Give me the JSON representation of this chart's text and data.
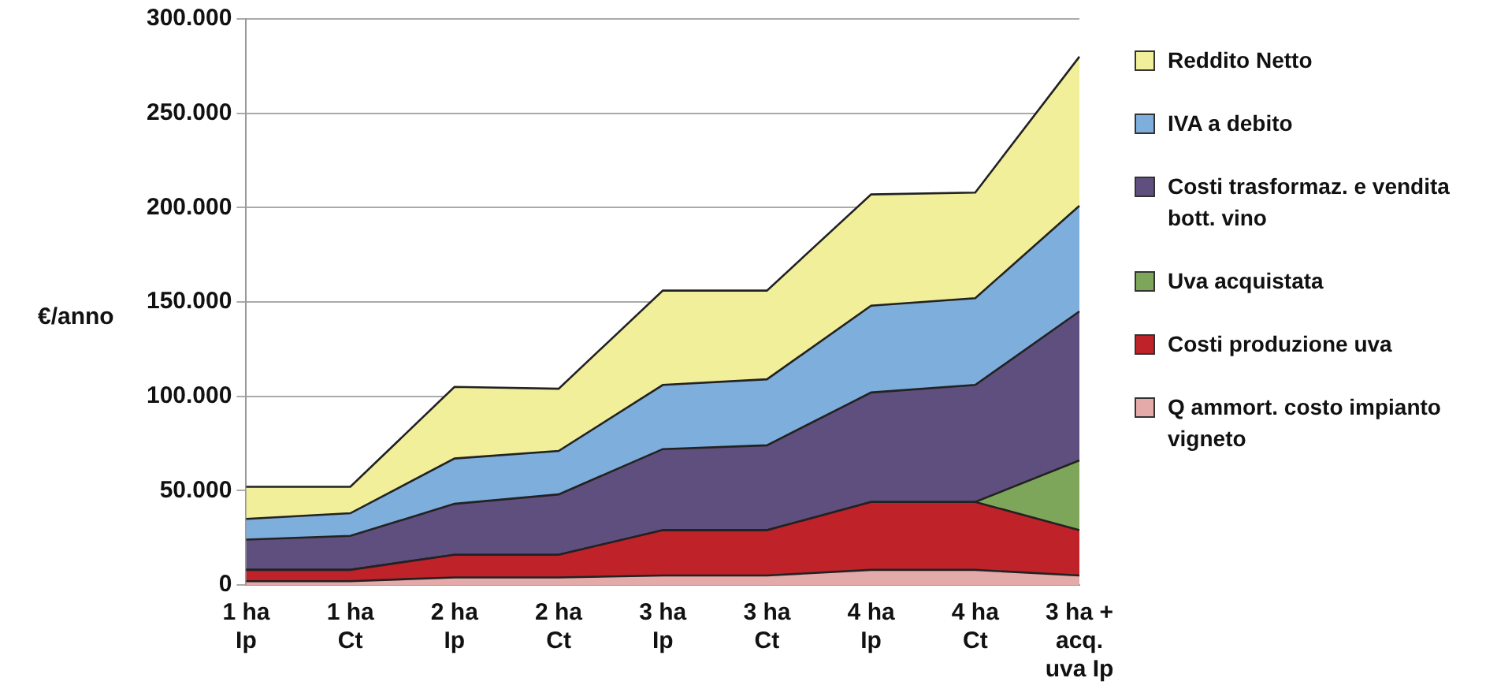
{
  "chart_data": {
    "type": "area",
    "stacked": true,
    "ylabel": "€/anno",
    "categories": [
      "1 ha Ip",
      "1 ha Ct",
      "2 ha Ip",
      "2 ha Ct",
      "3 ha Ip",
      "3 ha Ct",
      "4 ha Ip",
      "4 ha Ct",
      "3 ha + acq. uva Ip"
    ],
    "series": [
      {
        "name": "Q ammort. costo impianto vigneto",
        "color": "#e3aaa9",
        "values": [
          2000,
          2000,
          4000,
          4000,
          5000,
          5000,
          8000,
          8000,
          5000
        ]
      },
      {
        "name": "Costi produzione uva",
        "color": "#c0222a",
        "values": [
          6000,
          6000,
          12000,
          12000,
          24000,
          24000,
          36000,
          36000,
          24000
        ]
      },
      {
        "name": "Uva acquistata",
        "color": "#7ea65a",
        "values": [
          0,
          0,
          0,
          0,
          0,
          0,
          0,
          0,
          37000
        ]
      },
      {
        "name": "Costi trasformaz. e vendita bott. vino",
        "color": "#5f4f7e",
        "values": [
          16000,
          18000,
          27000,
          32000,
          43000,
          45000,
          58000,
          62000,
          79000
        ]
      },
      {
        "name": "IVA a debito",
        "color": "#7eaedb",
        "values": [
          11000,
          12000,
          24000,
          23000,
          34000,
          35000,
          46000,
          46000,
          56000
        ]
      },
      {
        "name": "Reddito Netto",
        "color": "#f2ef9a",
        "values": [
          17000,
          14000,
          38000,
          33000,
          50000,
          47000,
          59000,
          56000,
          79000
        ]
      }
    ],
    "ylim": [
      0,
      300000
    ],
    "yticks": [
      {
        "value": 0,
        "label": "0"
      },
      {
        "value": 50000,
        "label": "50.000"
      },
      {
        "value": 100000,
        "label": "100.000"
      },
      {
        "value": 150000,
        "label": "150.000"
      },
      {
        "value": 200000,
        "label": "200.000"
      },
      {
        "value": 250000,
        "label": "250.000"
      },
      {
        "value": 300000,
        "label": "300.000"
      }
    ],
    "grid": "y",
    "legend": "right"
  }
}
